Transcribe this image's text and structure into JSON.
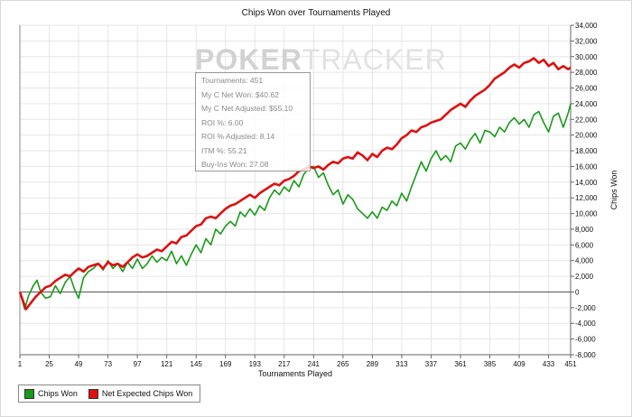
{
  "chart_data": {
    "type": "line",
    "title": "Chips Won over Tournaments Played",
    "xlabel": "Tournaments Played",
    "ylabel": "Chips Won",
    "x_ticks": [
      1,
      25,
      49,
      73,
      97,
      121,
      145,
      169,
      193,
      217,
      241,
      265,
      289,
      313,
      337,
      361,
      385,
      409,
      433,
      451
    ],
    "y_ticks": [
      -8000,
      -6000,
      -4000,
      -2000,
      0,
      2000,
      4000,
      6000,
      8000,
      10000,
      12000,
      14000,
      16000,
      18000,
      20000,
      22000,
      24000,
      26000,
      28000,
      30000,
      32000,
      34000
    ],
    "y_tick_labels": [
      "-8,000",
      "-6,000",
      "-4,000",
      "-2,000",
      "0",
      "2,000",
      "4,000",
      "6,000",
      "8,000",
      "10,000",
      "12,000",
      "14,000",
      "16,000",
      "18,000",
      "20,000",
      "22,000",
      "24,000",
      "26,000",
      "28,000",
      "30,000",
      "32,000",
      "34,000"
    ],
    "xlim": [
      1,
      451
    ],
    "ylim": [
      -8000,
      34000
    ],
    "grid": true,
    "legend_position": "bottom-left",
    "series": [
      {
        "name": "Chips Won",
        "color": "#1a9a1a",
        "points": [
          [
            1,
            0
          ],
          [
            5,
            -2200
          ],
          [
            8,
            -500
          ],
          [
            12,
            800
          ],
          [
            15,
            1500
          ],
          [
            18,
            0
          ],
          [
            22,
            -800
          ],
          [
            26,
            -600
          ],
          [
            30,
            800
          ],
          [
            34,
            -200
          ],
          [
            38,
            1200
          ],
          [
            42,
            2000
          ],
          [
            46,
            200
          ],
          [
            49,
            -800
          ],
          [
            53,
            1800
          ],
          [
            57,
            2600
          ],
          [
            61,
            3000
          ],
          [
            65,
            3600
          ],
          [
            69,
            2800
          ],
          [
            73,
            4000
          ],
          [
            77,
            3000
          ],
          [
            81,
            3600
          ],
          [
            85,
            2600
          ],
          [
            89,
            3800
          ],
          [
            93,
            3000
          ],
          [
            97,
            4200
          ],
          [
            101,
            3000
          ],
          [
            105,
            3600
          ],
          [
            109,
            4600
          ],
          [
            113,
            3800
          ],
          [
            117,
            4400
          ],
          [
            121,
            4000
          ],
          [
            125,
            5200
          ],
          [
            129,
            3600
          ],
          [
            133,
            4600
          ],
          [
            137,
            3400
          ],
          [
            141,
            4800
          ],
          [
            145,
            6000
          ],
          [
            149,
            5000
          ],
          [
            153,
            6800
          ],
          [
            157,
            6000
          ],
          [
            161,
            8000
          ],
          [
            165,
            7400
          ],
          [
            169,
            8400
          ],
          [
            173,
            9000
          ],
          [
            177,
            8400
          ],
          [
            181,
            10200
          ],
          [
            185,
            9600
          ],
          [
            189,
            10600
          ],
          [
            193,
            9800
          ],
          [
            197,
            11000
          ],
          [
            201,
            10400
          ],
          [
            205,
            12000
          ],
          [
            209,
            13000
          ],
          [
            213,
            12400
          ],
          [
            217,
            13400
          ],
          [
            221,
            12800
          ],
          [
            225,
            14200
          ],
          [
            229,
            13400
          ],
          [
            233,
            15000
          ],
          [
            237,
            15800
          ],
          [
            241,
            16000
          ],
          [
            245,
            14600
          ],
          [
            249,
            15200
          ],
          [
            253,
            13600
          ],
          [
            257,
            12400
          ],
          [
            261,
            13000
          ],
          [
            265,
            11200
          ],
          [
            269,
            12400
          ],
          [
            273,
            11800
          ],
          [
            277,
            10600
          ],
          [
            281,
            10000
          ],
          [
            285,
            9400
          ],
          [
            289,
            10200
          ],
          [
            293,
            9400
          ],
          [
            297,
            10800
          ],
          [
            301,
            10400
          ],
          [
            305,
            11600
          ],
          [
            309,
            11000
          ],
          [
            313,
            12600
          ],
          [
            317,
            11600
          ],
          [
            321,
            13400
          ],
          [
            325,
            15000
          ],
          [
            329,
            16600
          ],
          [
            333,
            15400
          ],
          [
            337,
            17000
          ],
          [
            341,
            18000
          ],
          [
            345,
            16800
          ],
          [
            349,
            17400
          ],
          [
            353,
            16600
          ],
          [
            357,
            18600
          ],
          [
            361,
            19000
          ],
          [
            365,
            18200
          ],
          [
            369,
            19400
          ],
          [
            373,
            20200
          ],
          [
            377,
            19000
          ],
          [
            381,
            20600
          ],
          [
            385,
            20400
          ],
          [
            389,
            19800
          ],
          [
            393,
            21000
          ],
          [
            397,
            20400
          ],
          [
            401,
            21600
          ],
          [
            405,
            22200
          ],
          [
            409,
            21400
          ],
          [
            413,
            22000
          ],
          [
            417,
            21000
          ],
          [
            421,
            22600
          ],
          [
            425,
            23000
          ],
          [
            429,
            21600
          ],
          [
            433,
            20400
          ],
          [
            437,
            22400
          ],
          [
            441,
            22800
          ],
          [
            445,
            21000
          ],
          [
            449,
            22800
          ],
          [
            451,
            24000
          ]
        ]
      },
      {
        "name": "Net Expected Chips Won",
        "color": "#dd1111",
        "points": [
          [
            1,
            0
          ],
          [
            6,
            -2200
          ],
          [
            10,
            -1400
          ],
          [
            14,
            -600
          ],
          [
            18,
            0
          ],
          [
            22,
            600
          ],
          [
            26,
            800
          ],
          [
            30,
            1400
          ],
          [
            34,
            1800
          ],
          [
            38,
            2200
          ],
          [
            42,
            2000
          ],
          [
            46,
            2600
          ],
          [
            49,
            3000
          ],
          [
            53,
            2600
          ],
          [
            57,
            3200
          ],
          [
            61,
            3400
          ],
          [
            65,
            3600
          ],
          [
            69,
            3000
          ],
          [
            73,
            3800
          ],
          [
            77,
            3400
          ],
          [
            81,
            3600
          ],
          [
            85,
            3200
          ],
          [
            89,
            3800
          ],
          [
            93,
            4400
          ],
          [
            97,
            4800
          ],
          [
            101,
            4400
          ],
          [
            105,
            4600
          ],
          [
            109,
            5000
          ],
          [
            113,
            5400
          ],
          [
            117,
            5200
          ],
          [
            121,
            5800
          ],
          [
            125,
            6400
          ],
          [
            129,
            6200
          ],
          [
            133,
            7000
          ],
          [
            137,
            7200
          ],
          [
            141,
            7800
          ],
          [
            145,
            8400
          ],
          [
            149,
            8600
          ],
          [
            153,
            9400
          ],
          [
            157,
            9600
          ],
          [
            161,
            9400
          ],
          [
            165,
            10000
          ],
          [
            169,
            10600
          ],
          [
            173,
            11000
          ],
          [
            177,
            11200
          ],
          [
            181,
            11600
          ],
          [
            185,
            12000
          ],
          [
            189,
            12400
          ],
          [
            193,
            12000
          ],
          [
            197,
            12600
          ],
          [
            201,
            13000
          ],
          [
            205,
            13400
          ],
          [
            209,
            13800
          ],
          [
            213,
            13600
          ],
          [
            217,
            14200
          ],
          [
            221,
            14400
          ],
          [
            225,
            14800
          ],
          [
            229,
            15400
          ],
          [
            233,
            15600
          ],
          [
            237,
            16000
          ],
          [
            241,
            15800
          ],
          [
            245,
            16000
          ],
          [
            249,
            15600
          ],
          [
            253,
            16200
          ],
          [
            257,
            16600
          ],
          [
            261,
            16400
          ],
          [
            265,
            17000
          ],
          [
            269,
            17200
          ],
          [
            273,
            17000
          ],
          [
            277,
            17800
          ],
          [
            281,
            17400
          ],
          [
            285,
            16800
          ],
          [
            289,
            17600
          ],
          [
            293,
            17200
          ],
          [
            297,
            18000
          ],
          [
            301,
            18400
          ],
          [
            305,
            18200
          ],
          [
            309,
            18800
          ],
          [
            313,
            19600
          ],
          [
            317,
            20000
          ],
          [
            321,
            20600
          ],
          [
            325,
            20400
          ],
          [
            329,
            21000
          ],
          [
            333,
            21200
          ],
          [
            337,
            21600
          ],
          [
            341,
            21800
          ],
          [
            345,
            22000
          ],
          [
            349,
            22600
          ],
          [
            353,
            23200
          ],
          [
            357,
            23600
          ],
          [
            361,
            24000
          ],
          [
            365,
            23600
          ],
          [
            369,
            24400
          ],
          [
            373,
            25000
          ],
          [
            377,
            25400
          ],
          [
            381,
            25800
          ],
          [
            385,
            26400
          ],
          [
            389,
            27200
          ],
          [
            393,
            27600
          ],
          [
            397,
            28000
          ],
          [
            401,
            28600
          ],
          [
            405,
            29000
          ],
          [
            409,
            28600
          ],
          [
            413,
            29200
          ],
          [
            417,
            29400
          ],
          [
            421,
            29800
          ],
          [
            425,
            29200
          ],
          [
            429,
            29600
          ],
          [
            433,
            28800
          ],
          [
            437,
            29200
          ],
          [
            441,
            28400
          ],
          [
            445,
            28800
          ],
          [
            449,
            28400
          ],
          [
            451,
            28600
          ]
        ]
      }
    ]
  },
  "tooltip": {
    "lines": [
      "Tournaments: 451",
      "My C Net Won: $40.62",
      "My C Net Adjusted: $55.10",
      "ROI %: 6.00",
      "ROI % Adjusted: 8.14",
      "ITM %: 55.21",
      "Buy-Ins Won: 27.08"
    ]
  },
  "watermark": {
    "part1": "POKER",
    "part2": "TRACKER"
  }
}
